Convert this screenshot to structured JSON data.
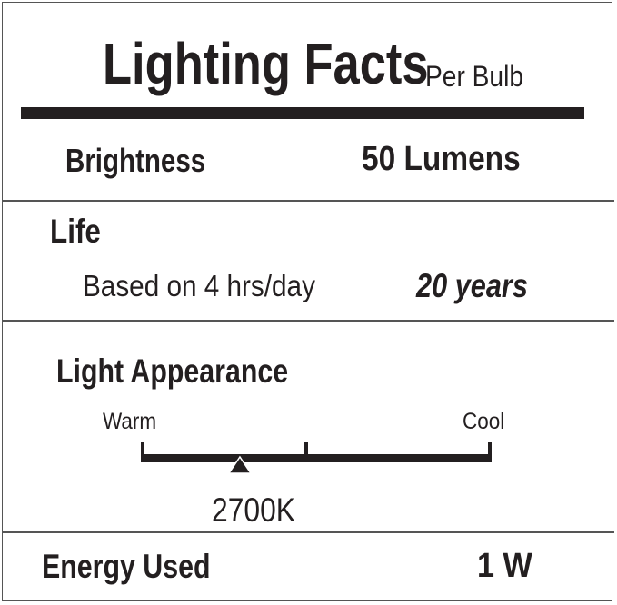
{
  "label": {
    "title": "Lighting Facts",
    "subtitle": "Per Bulb",
    "brightness": {
      "label": "Brightness",
      "value": "50 Lumens"
    },
    "life": {
      "label": "Life",
      "note": "Based on 4 hrs/day",
      "value": "20 years"
    },
    "appearance": {
      "label": "Light Appearance",
      "warm_label": "Warm",
      "cool_label": "Cool",
      "marker_fraction": 0.28,
      "value": "2700K"
    },
    "energy": {
      "label": "Energy Used",
      "value": "1 W"
    },
    "ink_color": "#231f20"
  }
}
